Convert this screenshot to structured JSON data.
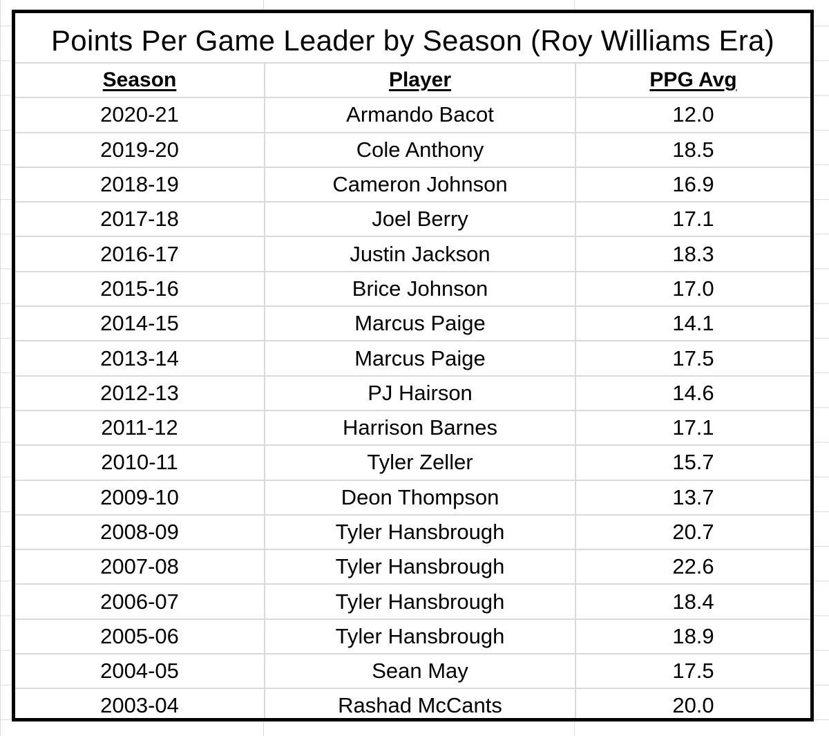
{
  "title": "Points Per Game Leader by Season (Roy Williams Era)",
  "headers": {
    "season": "Season",
    "player": "Player",
    "ppg": "PPG Avg"
  },
  "rows": [
    {
      "season": "2020-21",
      "player": "Armando Bacot",
      "ppg": "12.0"
    },
    {
      "season": "2019-20",
      "player": "Cole Anthony",
      "ppg": "18.5"
    },
    {
      "season": "2018-19",
      "player": "Cameron Johnson",
      "ppg": "16.9"
    },
    {
      "season": "2017-18",
      "player": "Joel Berry",
      "ppg": "17.1"
    },
    {
      "season": "2016-17",
      "player": "Justin Jackson",
      "ppg": "18.3"
    },
    {
      "season": "2015-16",
      "player": "Brice Johnson",
      "ppg": "17.0"
    },
    {
      "season": "2014-15",
      "player": "Marcus Paige",
      "ppg": "14.1"
    },
    {
      "season": "2013-14",
      "player": "Marcus Paige",
      "ppg": "17.5"
    },
    {
      "season": "2012-13",
      "player": "PJ Hairson",
      "ppg": "14.6"
    },
    {
      "season": "2011-12",
      "player": "Harrison Barnes",
      "ppg": "17.1"
    },
    {
      "season": "2010-11",
      "player": "Tyler Zeller",
      "ppg": "15.7"
    },
    {
      "season": "2009-10",
      "player": "Deon Thompson",
      "ppg": "13.7"
    },
    {
      "season": "2008-09",
      "player": "Tyler Hansbrough",
      "ppg": "20.7"
    },
    {
      "season": "2007-08",
      "player": "Tyler Hansbrough",
      "ppg": "22.6"
    },
    {
      "season": "2006-07",
      "player": "Tyler Hansbrough",
      "ppg": "18.4"
    },
    {
      "season": "2005-06",
      "player": "Tyler Hansbrough",
      "ppg": "18.9"
    },
    {
      "season": "2004-05",
      "player": "Sean May",
      "ppg": "17.5"
    },
    {
      "season": "2003-04",
      "player": "Rashad McCants",
      "ppg": "20.0"
    }
  ]
}
